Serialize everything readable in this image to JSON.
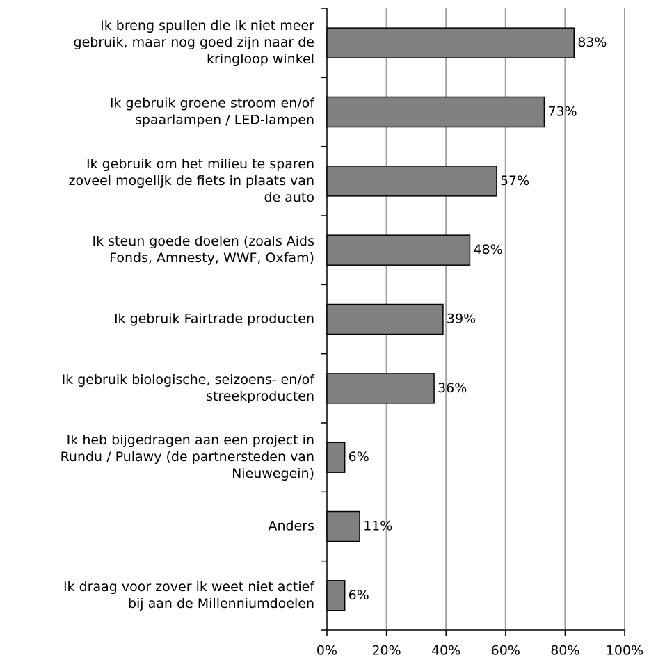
{
  "chart_data": {
    "type": "bar",
    "orientation": "horizontal",
    "categories": [
      [
        "Ik breng spullen die ik niet meer",
        "gebruik, maar nog goed zijn naar de",
        "kringloop winkel"
      ],
      [
        "Ik gebruik groene stroom en/of",
        "spaarlampen / LED-lampen"
      ],
      [
        "Ik  gebruik om het milieu te sparen",
        "zoveel mogelijk de fiets in plaats van",
        "de auto"
      ],
      [
        "Ik steun goede doelen (zoals Aids",
        "Fonds, Amnesty, WWF, Oxfam)"
      ],
      [
        "Ik gebruik Fairtrade producten"
      ],
      [
        "Ik gebruik biologische, seizoens- en/of",
        "streekproducten"
      ],
      [
        "Ik heb bijgedragen aan een project in",
        "Rundu / Pulawy (de partnersteden van",
        "Nieuwegein)"
      ],
      [
        "Anders"
      ],
      [
        "Ik draag voor zover ik weet niet actief",
        "bij aan de Millenniumdoelen"
      ]
    ],
    "values": [
      83,
      73,
      57,
      48,
      39,
      36,
      6,
      11,
      6
    ],
    "value_labels": [
      "83%",
      "73%",
      "57%",
      "48%",
      "39%",
      "36%",
      "6%",
      "11%",
      "6%"
    ],
    "color": "#808080",
    "xlim": [
      0,
      100
    ],
    "xticks": [
      {
        "value": 0,
        "label": "0%"
      },
      {
        "value": 20,
        "label": "20%"
      },
      {
        "value": 40,
        "label": "40%"
      },
      {
        "value": 60,
        "label": "60%"
      },
      {
        "value": 80,
        "label": "80%"
      },
      {
        "value": 100,
        "label": "100%"
      }
    ],
    "grid": true
  }
}
